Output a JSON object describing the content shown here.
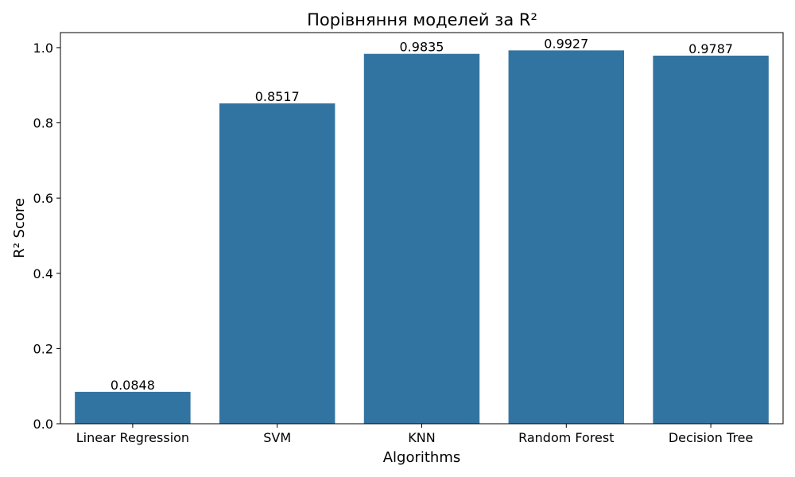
{
  "chart_data": {
    "type": "bar",
    "title": "Порівняння моделей за R²",
    "xlabel": "Algorithms",
    "ylabel": "R² Score",
    "categories": [
      "Linear Regression",
      "SVM",
      "KNN",
      "Random Forest",
      "Decision Tree"
    ],
    "values": [
      0.0848,
      0.8517,
      0.9835,
      0.9927,
      0.9787
    ],
    "value_labels": [
      "0.0848",
      "0.8517",
      "0.9835",
      "0.9927",
      "0.9787"
    ],
    "ylim": [
      0,
      1.04
    ],
    "yticks": [
      0.0,
      0.2,
      0.4,
      0.6,
      0.8,
      1.0
    ],
    "ytick_labels": [
      "0.0",
      "0.2",
      "0.4",
      "0.6",
      "0.8",
      "1.0"
    ],
    "bar_color": "#3274a1",
    "grid": false,
    "legend": "none"
  }
}
